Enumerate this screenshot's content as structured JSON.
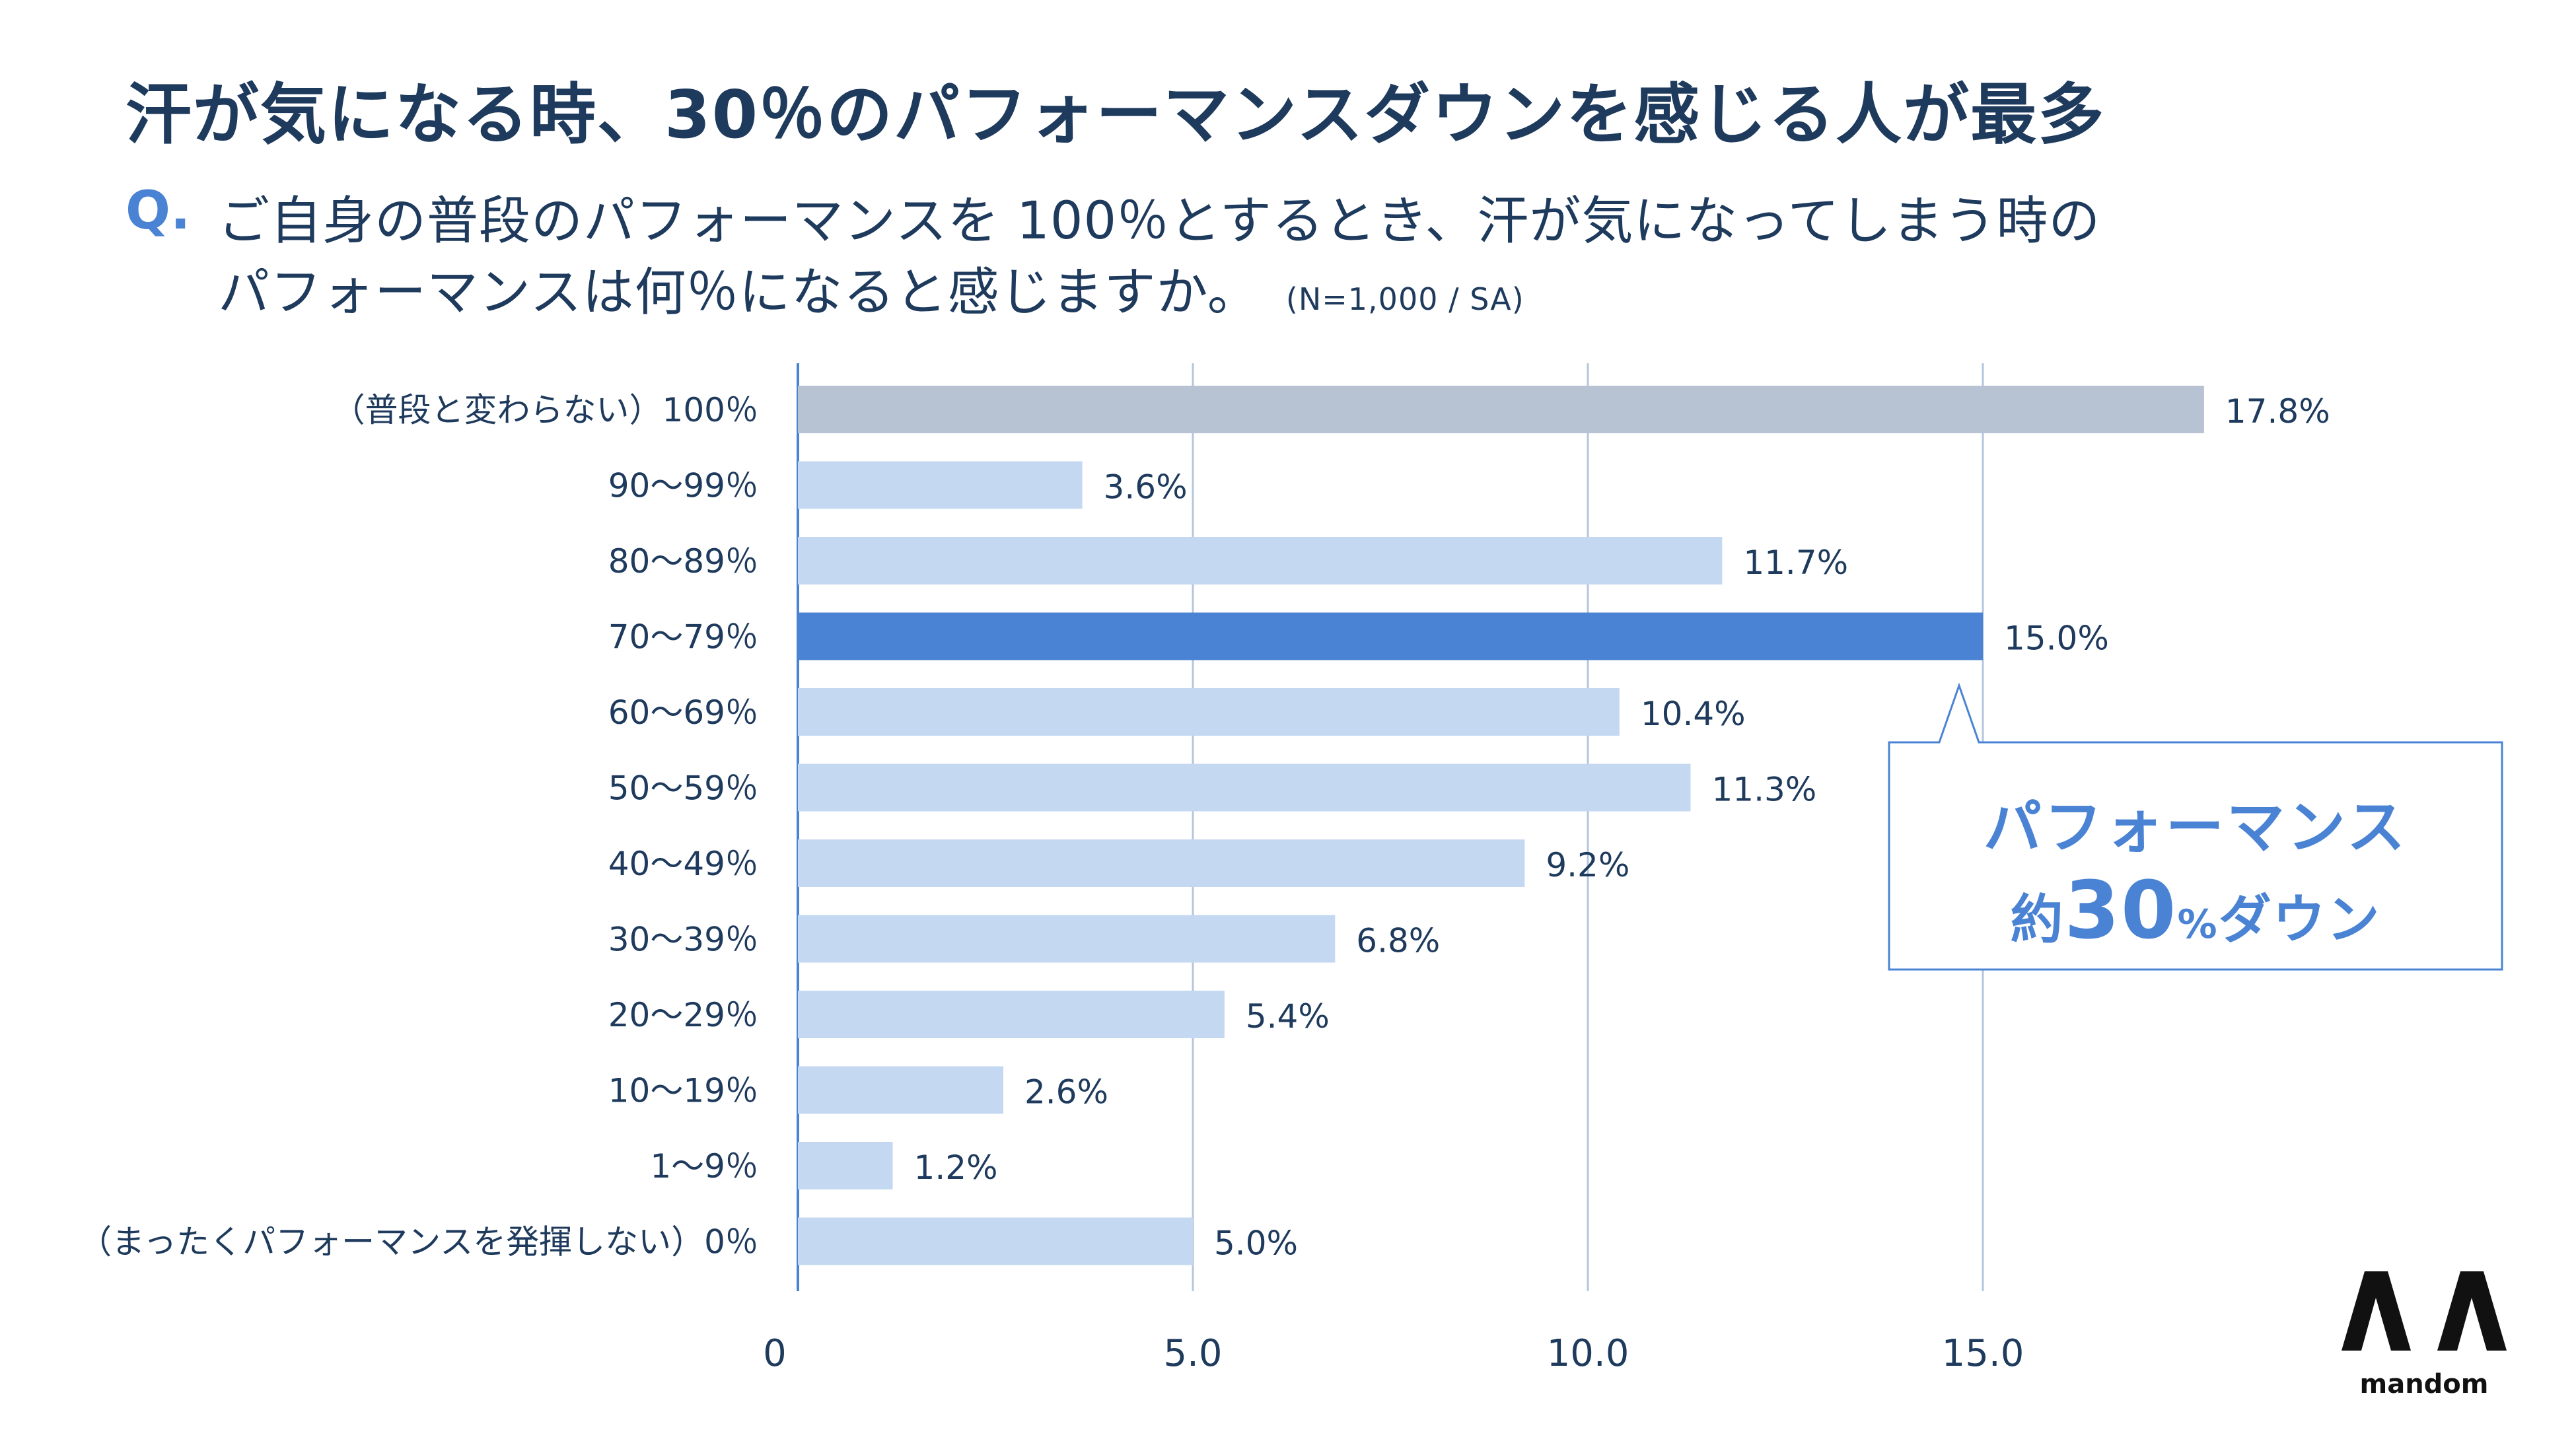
{
  "title": "汗が気になる時、30％のパフォーマンスダウンを感じる人が最多",
  "question": {
    "prefix": "Q.",
    "line1": "ご自身の普段のパフォーマンスを 100％とするとき、汗が気になってしまう時の",
    "line2": "パフォーマンスは何％になると感じますか。",
    "note": "(N=1,000 / SA)"
  },
  "callout": {
    "line1": "パフォーマンス",
    "line2_prefix": "約",
    "line2_number": "30",
    "line2_percent": "%",
    "line2_suffix": "ダウン"
  },
  "logo": {
    "text": "mandom"
  },
  "colors": {
    "bar_default": "#c5d8f1",
    "bar_highlight": "#4a83d4",
    "bar_baseline": "#b7c2d3",
    "text": "#1e3a5c",
    "accent": "#4a83d4",
    "grid": "#b5c6dd"
  },
  "chart_data": {
    "type": "bar",
    "orientation": "horizontal",
    "categories": [
      "（普段と変わらない）100％",
      "90〜99％",
      "80〜89％",
      "70〜79％",
      "60〜69％",
      "50〜59％",
      "40〜49％",
      "30〜39％",
      "20〜29％",
      "10〜19％",
      "1〜9％",
      "（まったくパフォーマンスを発揮しない）0％"
    ],
    "values": [
      17.8,
      3.6,
      11.7,
      15.0,
      10.4,
      11.3,
      9.2,
      6.8,
      5.4,
      2.6,
      1.2,
      5.0
    ],
    "value_labels": [
      "17.8%",
      "3.6%",
      "11.7%",
      "15.0%",
      "10.4%",
      "11.3%",
      "9.2%",
      "6.8%",
      "5.4%",
      "2.6%",
      "1.2%",
      "5.0%"
    ],
    "bar_styles": [
      "baseline",
      "default",
      "default",
      "highlight",
      "default",
      "default",
      "default",
      "default",
      "default",
      "default",
      "default",
      "default"
    ],
    "xticks": [
      0,
      5.0,
      10.0,
      15.0
    ],
    "xtick_labels": [
      "0",
      "5.0",
      "10.0",
      "15.0"
    ],
    "xlim": [
      0,
      17.8
    ],
    "grid": true,
    "title": "",
    "xlabel": "",
    "ylabel": ""
  }
}
